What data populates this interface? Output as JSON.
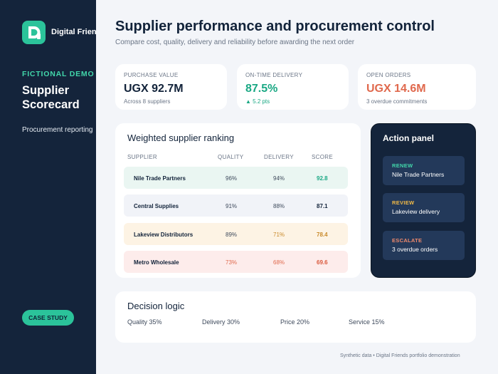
{
  "colors": {
    "sidebar_bg": "#14243b",
    "accent": "#2bc39a",
    "eyebrow": "#42d6aa",
    "negative": "#e0694d",
    "warning": "#c98a2b",
    "positive": "#1aa884"
  },
  "sidebar": {
    "logo_icon": "d-logo-icon",
    "brand": "Digital Friends",
    "eyebrow": "FICTIONAL DEMO",
    "title": "Supplier Scorecard",
    "subtitle": "Procurement reporting",
    "case_button": "CASE STUDY"
  },
  "header": {
    "title": "Supplier performance and procurement control",
    "subtitle": "Compare cost, quality, delivery and reliability before awarding the next order"
  },
  "kpis": [
    {
      "label": "PURCHASE VALUE",
      "value": "UGX 92.7M",
      "note": "Across 8 suppliers"
    },
    {
      "label": "ON-TIME DELIVERY",
      "value": "87.5%",
      "note": "▲ 5.2 pts"
    },
    {
      "label": "OPEN ORDERS",
      "value": "UGX 14.6M",
      "note": "3 overdue commitments"
    }
  ],
  "ranking": {
    "title": "Weighted supplier ranking",
    "columns": [
      "SUPPLIER",
      "QUALITY",
      "DELIVERY",
      "SCORE"
    ],
    "rows": [
      {
        "supplier": "Nile Trade Partners",
        "quality": "96%",
        "delivery": "94%",
        "score": "92.8",
        "status": "good"
      },
      {
        "supplier": "Central Supplies",
        "quality": "91%",
        "delivery": "88%",
        "score": "87.1",
        "status": "neutral"
      },
      {
        "supplier": "Lakeview Distributors",
        "quality": "89%",
        "delivery": "71%",
        "score": "78.4",
        "status": "warning"
      },
      {
        "supplier": "Metro Wholesale",
        "quality": "73%",
        "delivery": "68%",
        "score": "69.6",
        "status": "risk"
      }
    ]
  },
  "actions": {
    "title": "Action panel",
    "items": [
      {
        "kind": "RENEW",
        "target": "Nile Trade Partners"
      },
      {
        "kind": "REVIEW",
        "target": "Lakeview delivery"
      },
      {
        "kind": "ESCALATE",
        "target": "3 overdue orders"
      }
    ]
  },
  "logic": {
    "title": "Decision logic",
    "items": [
      "Quality 35%",
      "Delivery 30%",
      "Price 20%",
      "Service 15%"
    ]
  },
  "footer": "Synthetic data • Digital Friends portfolio demonstration"
}
